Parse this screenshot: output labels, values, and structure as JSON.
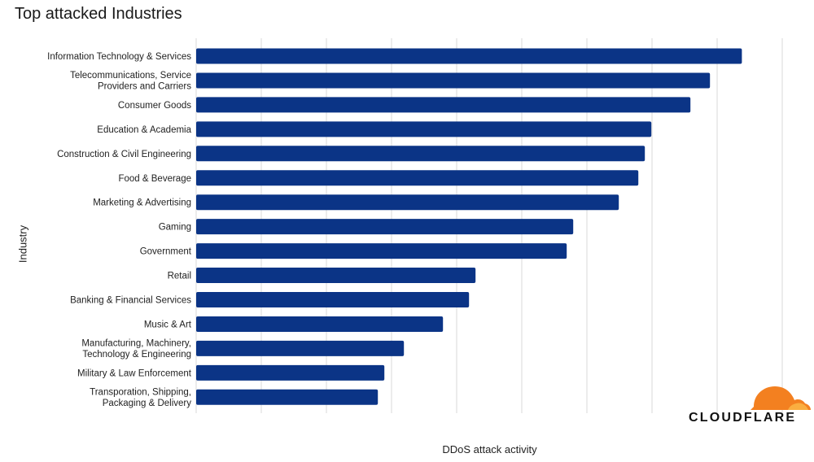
{
  "title": "Top attacked Industries",
  "logo": {
    "text": "CLOUDFLARE",
    "colors": [
      "#f38020",
      "#faae40"
    ]
  },
  "colors": {
    "bar": "#0b3486",
    "grid": "#d9d9d9",
    "text": "#222222"
  },
  "chart_data": {
    "type": "bar",
    "orientation": "horizontal",
    "title": "Top attacked Industries",
    "xlabel": "DDoS attack activity",
    "ylabel": "Industry",
    "xlim": [
      0,
      9
    ],
    "grid": true,
    "tick_labels_shown": false,
    "categories": [
      "Information Technology & Services",
      "Telecommunications, Service Providers and Carriers",
      "Consumer Goods",
      "Education & Academia",
      "Construction & Civil Engineering",
      "Food & Beverage",
      "Marketing & Advertising",
      "Gaming",
      "Government",
      "Retail",
      "Banking & Financial Services",
      "Music & Art",
      "Manufacturing, Machinery, Technology & Engineering",
      "Military & Law Enforcement",
      "Transporation, Shipping, Packaging & Delivery"
    ],
    "values": [
      8.38,
      7.89,
      7.59,
      6.99,
      6.89,
      6.79,
      6.49,
      5.79,
      5.69,
      4.29,
      4.19,
      3.79,
      3.19,
      2.89,
      2.79
    ]
  }
}
